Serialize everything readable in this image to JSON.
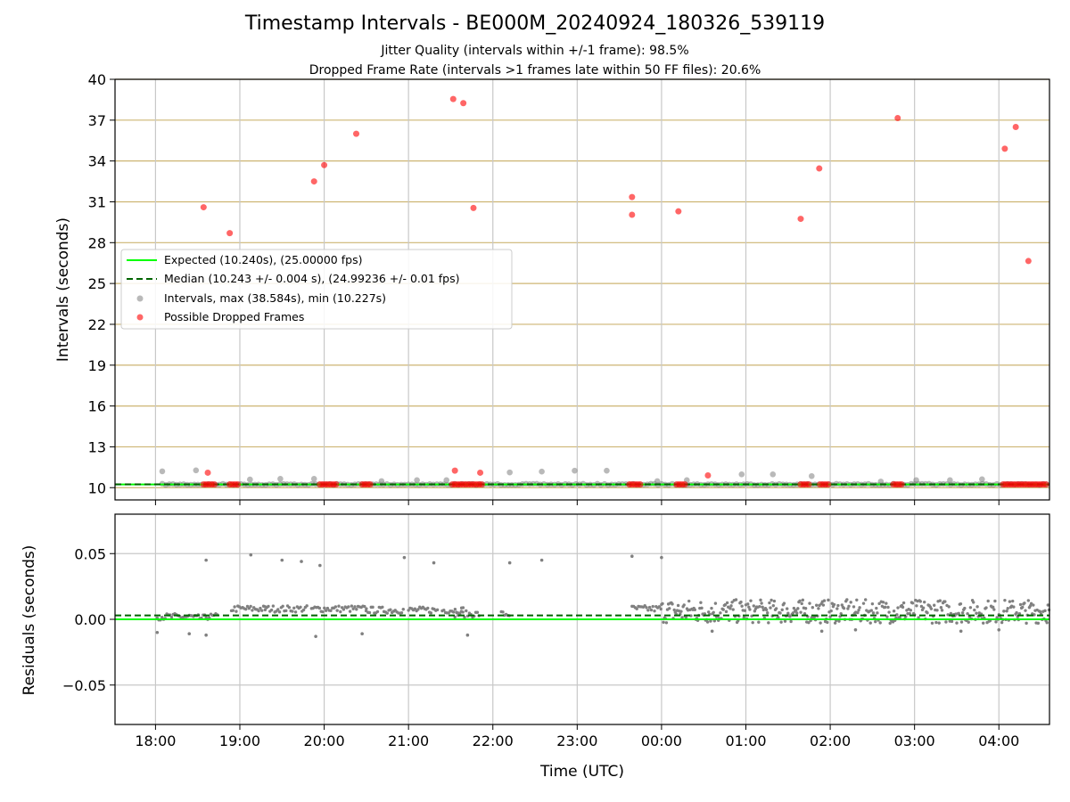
{
  "chart_data": [
    {
      "type": "scatter",
      "title": "Timestamp Intervals - BE000M_20240924_180326_539119",
      "subtitle_lines": [
        "Jitter Quality (intervals within +/-1 frame): 98.5%",
        "Dropped Frame Rate (intervals >1 frames late within 50 FF files): 20.6%"
      ],
      "ylabel": "Intervals (seconds)",
      "ylim": [
        9.1,
        40
      ],
      "yticks": [
        10,
        13,
        16,
        19,
        22,
        25,
        28,
        31,
        34,
        37,
        40
      ],
      "xlim": [
        17.52,
        28.6
      ],
      "xticks": [
        18,
        19,
        20,
        21,
        22,
        23,
        24,
        25,
        26,
        27,
        28
      ],
      "xticklabels": [
        "18:00",
        "19:00",
        "20:00",
        "21:00",
        "22:00",
        "23:00",
        "00:00",
        "01:00",
        "02:00",
        "03:00",
        "04:00"
      ],
      "grid": true,
      "legend_position": "center-left",
      "legend": [
        "Expected (10.240s), (25.00000 fps)",
        "Median (10.243 +/- 0.004 s), (24.99236 +/- 0.01 fps)",
        "Intervals, max (38.584s), min (10.227s)",
        "Possible Dropped Frames"
      ],
      "expected_interval": 10.24,
      "median_interval": 10.243,
      "series": [
        {
          "name": "Intervals, max (38.584s), min (10.227s)",
          "color": "#808080",
          "baseline_value": 10.24,
          "baseline_x_range": [
            18.08,
            28.58
          ],
          "points": [
            {
              "x": 18.08,
              "y": 11.2
            },
            {
              "x": 18.48,
              "y": 11.27
            },
            {
              "x": 19.12,
              "y": 10.6
            },
            {
              "x": 19.48,
              "y": 10.65
            },
            {
              "x": 19.88,
              "y": 10.65
            },
            {
              "x": 20.68,
              "y": 10.48
            },
            {
              "x": 21.1,
              "y": 10.55
            },
            {
              "x": 21.45,
              "y": 10.55
            },
            {
              "x": 22.2,
              "y": 11.12
            },
            {
              "x": 22.58,
              "y": 11.18
            },
            {
              "x": 22.97,
              "y": 11.25
            },
            {
              "x": 23.35,
              "y": 11.25
            },
            {
              "x": 23.95,
              "y": 10.48
            },
            {
              "x": 24.3,
              "y": 10.55
            },
            {
              "x": 24.95,
              "y": 10.98
            },
            {
              "x": 25.32,
              "y": 10.98
            },
            {
              "x": 25.78,
              "y": 10.85
            },
            {
              "x": 26.6,
              "y": 10.45
            },
            {
              "x": 27.02,
              "y": 10.55
            },
            {
              "x": 27.42,
              "y": 10.55
            },
            {
              "x": 27.8,
              "y": 10.62
            }
          ]
        },
        {
          "name": "Possible Dropped Frames",
          "color": "#ff0000",
          "baseline_clusters": [
            [
              18.57,
              18.72
            ],
            [
              18.88,
              18.98
            ],
            [
              19.95,
              20.15
            ],
            [
              20.45,
              20.55
            ],
            [
              21.52,
              21.88
            ],
            [
              23.62,
              23.75
            ],
            [
              24.18,
              24.28
            ],
            [
              25.65,
              25.75
            ],
            [
              25.88,
              25.98
            ],
            [
              26.75,
              26.85
            ],
            [
              28.05,
              28.58
            ]
          ],
          "points": [
            {
              "x": 18.57,
              "y": 30.6
            },
            {
              "x": 18.88,
              "y": 28.7
            },
            {
              "x": 19.88,
              "y": 32.5
            },
            {
              "x": 20.0,
              "y": 33.7
            },
            {
              "x": 20.38,
              "y": 36.0
            },
            {
              "x": 21.53,
              "y": 38.55
            },
            {
              "x": 21.65,
              "y": 38.25
            },
            {
              "x": 21.77,
              "y": 30.55
            },
            {
              "x": 23.65,
              "y": 31.35
            },
            {
              "x": 23.65,
              "y": 30.05
            },
            {
              "x": 24.2,
              "y": 30.3
            },
            {
              "x": 25.65,
              "y": 29.75
            },
            {
              "x": 25.87,
              "y": 33.45
            },
            {
              "x": 26.8,
              "y": 37.15
            },
            {
              "x": 28.07,
              "y": 34.9
            },
            {
              "x": 28.2,
              "y": 36.5
            },
            {
              "x": 28.35,
              "y": 26.65
            },
            {
              "x": 18.62,
              "y": 11.1
            },
            {
              "x": 21.55,
              "y": 11.25
            },
            {
              "x": 21.85,
              "y": 11.1
            },
            {
              "x": 24.55,
              "y": 10.9
            }
          ]
        }
      ]
    },
    {
      "type": "scatter",
      "xlabel": "Time (UTC)",
      "ylabel": "Residuals (seconds)",
      "ylim": [
        -0.08,
        0.08
      ],
      "yticks": [
        -0.05,
        0.0,
        0.05
      ],
      "yticklabels": [
        "−0.05",
        "0.00",
        "0.05"
      ],
      "xlim": [
        17.52,
        28.6
      ],
      "xticks": [
        18,
        19,
        20,
        21,
        22,
        23,
        24,
        25,
        26,
        27,
        28
      ],
      "xticklabels": [
        "18:00",
        "19:00",
        "20:00",
        "21:00",
        "22:00",
        "23:00",
        "00:00",
        "01:00",
        "02:00",
        "03:00",
        "04:00"
      ],
      "grid": true,
      "expected_residual": 0.0,
      "median_residual": 0.003,
      "series": [
        {
          "name": "Residuals",
          "color": "#808080",
          "segments": [
            {
              "x_range": [
                18.02,
                18.45
              ],
              "level": 0.002
            },
            {
              "x_range": [
                18.45,
                18.6
              ],
              "level": 0.001
            },
            {
              "x_range": [
                18.6,
                18.75
              ],
              "level": 0.002
            },
            {
              "x_range": [
                18.9,
                19.3
              ],
              "level": 0.008
            },
            {
              "x_range": [
                19.3,
                19.8
              ],
              "level": 0.008
            },
            {
              "x_range": [
                19.85,
                20.5
              ],
              "level": 0.008
            },
            {
              "x_range": [
                20.5,
                20.95
              ],
              "level": 0.007
            },
            {
              "x_range": [
                21.0,
                21.35
              ],
              "level": 0.007
            },
            {
              "x_range": [
                21.4,
                21.65
              ],
              "level": 0.007
            },
            {
              "x_range": [
                21.55,
                21.85
              ],
              "level": 0.004
            },
            {
              "x_range": [
                22.1,
                22.2
              ],
              "level": 0.004
            },
            {
              "x_range": [
                23.65,
                24.0
              ],
              "level": 0.008
            },
            {
              "x_range": [
                24.0,
                28.6
              ],
              "level": 0.006
            }
          ],
          "outliers": [
            {
              "x": 18.6,
              "y": 0.045
            },
            {
              "x": 19.13,
              "y": 0.049
            },
            {
              "x": 19.5,
              "y": 0.045
            },
            {
              "x": 19.73,
              "y": 0.044
            },
            {
              "x": 19.95,
              "y": 0.041
            },
            {
              "x": 20.95,
              "y": 0.047
            },
            {
              "x": 21.3,
              "y": 0.043
            },
            {
              "x": 22.2,
              "y": 0.043
            },
            {
              "x": 22.58,
              "y": 0.045
            },
            {
              "x": 23.65,
              "y": 0.048
            },
            {
              "x": 24.0,
              "y": 0.047
            },
            {
              "x": 18.02,
              "y": -0.01
            },
            {
              "x": 18.4,
              "y": -0.011
            },
            {
              "x": 18.6,
              "y": -0.012
            },
            {
              "x": 19.9,
              "y": -0.013
            },
            {
              "x": 20.45,
              "y": -0.011
            },
            {
              "x": 21.7,
              "y": -0.012
            },
            {
              "x": 24.6,
              "y": -0.009
            },
            {
              "x": 25.9,
              "y": -0.009
            },
            {
              "x": 26.3,
              "y": -0.008
            },
            {
              "x": 27.55,
              "y": -0.009
            },
            {
              "x": 28.0,
              "y": -0.008
            }
          ]
        }
      ]
    }
  ]
}
